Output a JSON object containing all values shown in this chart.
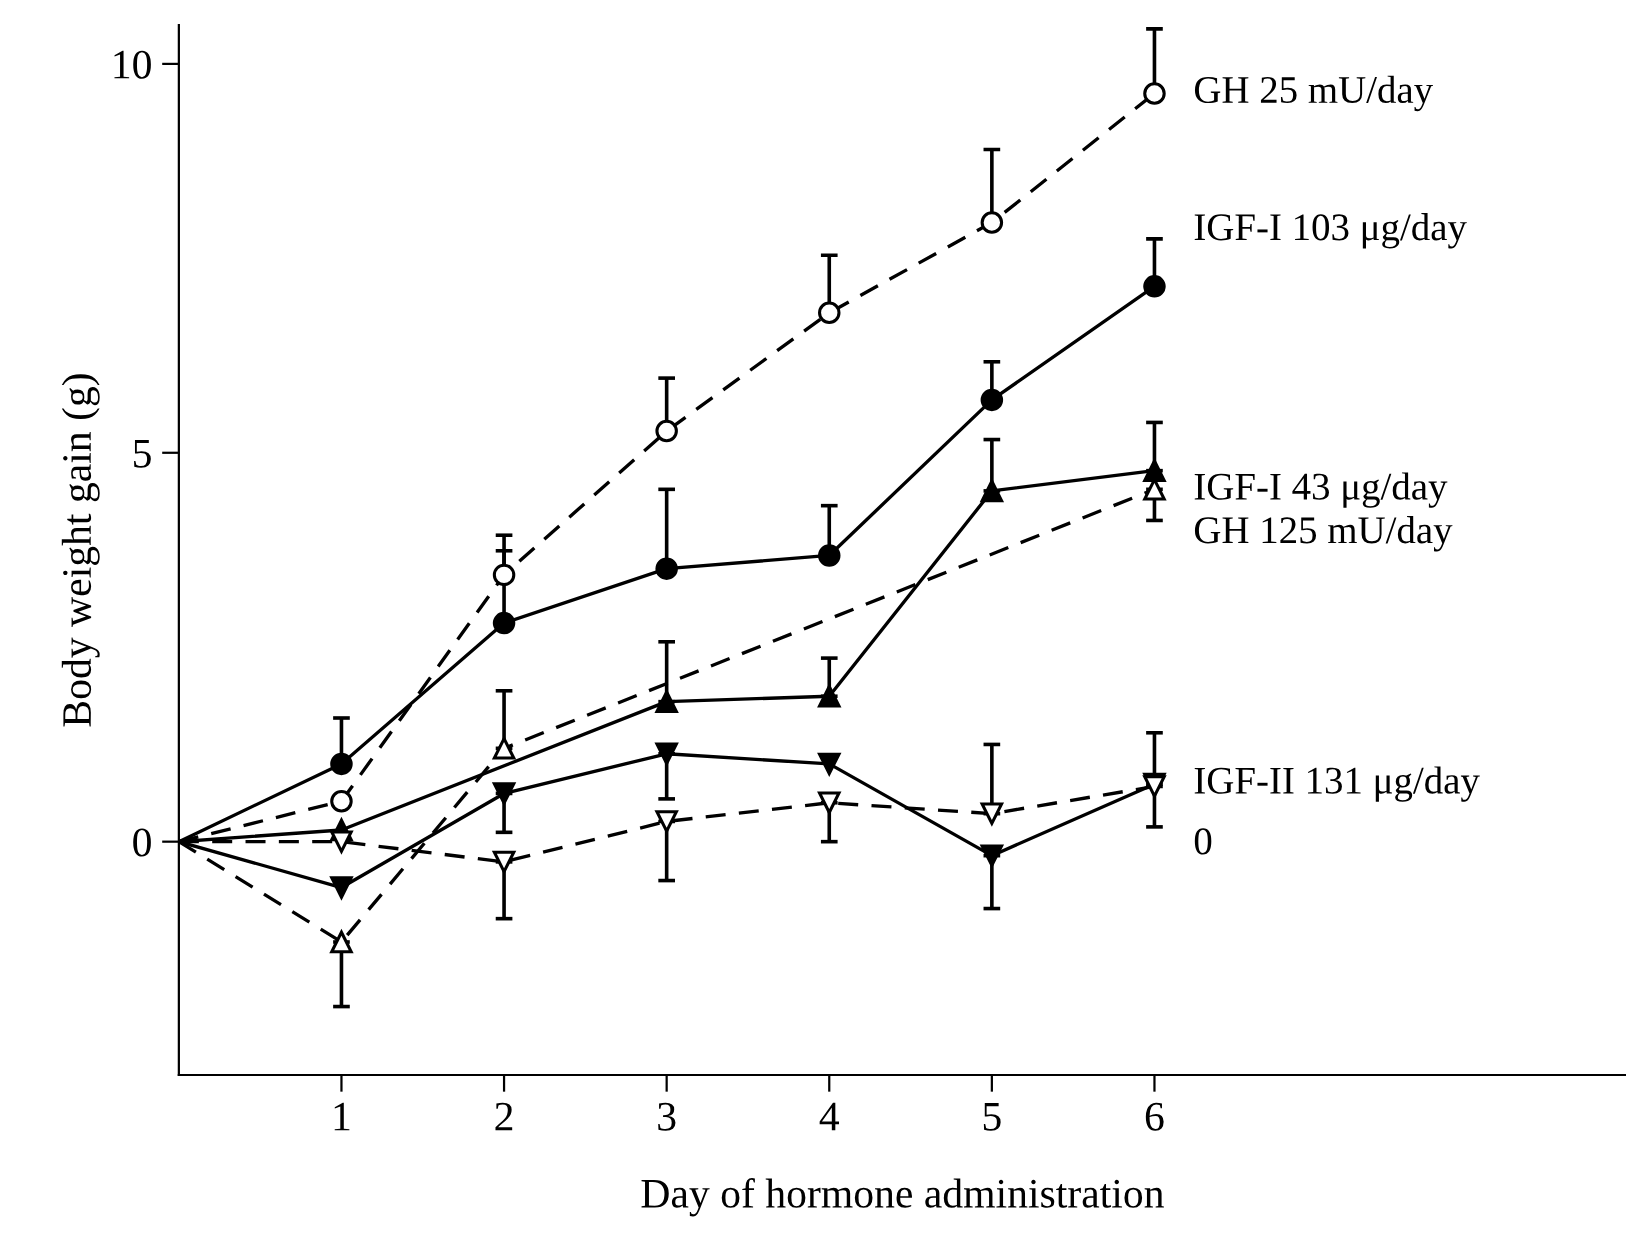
{
  "chart_data": {
    "type": "line",
    "xlabel": "Day of hormone administration",
    "ylabel": "Body weight gain (g)",
    "xlim": [
      0,
      8.9
    ],
    "xticks": [
      1,
      2,
      3,
      4,
      5,
      6
    ],
    "ylim": [
      -3,
      10.5
    ],
    "yticks": [
      0,
      5,
      10
    ],
    "grid": false,
    "legend": false,
    "series": [
      {
        "name": "GH 25 mU/day",
        "color": "#000000",
        "marker": "circle",
        "line_style": "dashed",
        "x": [
          0,
          1,
          2,
          3,
          4,
          5,
          6
        ],
        "values": [
          0,
          0.52,
          3.43,
          5.28,
          6.8,
          7.96,
          9.62
        ],
        "errors": [
          null,
          null,
          [
            3.43,
            3.94
          ],
          [
            5.28,
            5.96
          ],
          [
            6.8,
            7.54
          ],
          [
            7.96,
            8.9
          ],
          [
            9.62,
            10.45
          ]
        ]
      },
      {
        "name": "IGF-I 103 μg/day",
        "color": "#000000",
        "marker": "circle",
        "line_style": "solid",
        "x": [
          0,
          1,
          2,
          3,
          4,
          5,
          6
        ],
        "values": [
          0,
          1.0,
          2.81,
          3.51,
          3.68,
          5.68,
          7.14
        ],
        "errors": [
          null,
          [
            1.0,
            1.59
          ],
          [
            2.81,
            3.74
          ],
          [
            3.51,
            4.53
          ],
          [
            3.68,
            4.32
          ],
          [
            5.68,
            6.17
          ],
          [
            7.14,
            7.75
          ]
        ]
      },
      {
        "name": "IGF-I 43 μg/day",
        "color": "#000000",
        "marker": "triangle",
        "line_style": "solid",
        "x": [
          0,
          1,
          3,
          4,
          5,
          6
        ],
        "values": [
          0,
          0.15,
          1.8,
          1.87,
          4.51,
          4.77
        ],
        "errors": [
          null,
          null,
          [
            1.8,
            2.57
          ],
          [
            1.87,
            2.36
          ],
          [
            4.51,
            5.17
          ],
          [
            4.77,
            5.39
          ]
        ]
      },
      {
        "name": "GH 125 mU/day",
        "color": "#000000",
        "marker": "triangle",
        "line_style": "dashed",
        "x": [
          0,
          1,
          2,
          6
        ],
        "values": [
          0,
          -1.29,
          1.2,
          4.53
        ],
        "errors": [
          null,
          [
            -2.12,
            -1.29
          ],
          [
            1.2,
            1.94
          ],
          [
            4.13,
            4.53
          ]
        ]
      },
      {
        "name": "IGF-II 131 μg/day",
        "color": "#000000",
        "marker": "triangle-down",
        "line_style": "solid",
        "x": [
          0,
          1,
          2,
          3,
          4,
          5,
          6
        ],
        "values": [
          0,
          -0.59,
          0.62,
          1.13,
          1.0,
          -0.18,
          0.74
        ],
        "errors": [
          null,
          null,
          [
            0.12,
            0.62
          ],
          [
            0.55,
            1.13
          ],
          null,
          [
            -0.86,
            -0.18
          ],
          [
            0.19,
            0.74
          ]
        ]
      },
      {
        "name": "0",
        "color": "#000000",
        "marker": "triangle-down",
        "line_style": "dashed",
        "x": [
          0,
          1,
          2,
          3,
          4,
          5,
          6
        ],
        "values": [
          0,
          0.0,
          -0.26,
          0.26,
          0.5,
          0.36,
          0.71
        ],
        "errors": [
          null,
          null,
          [
            -0.99,
            -0.26
          ],
          [
            -0.5,
            0.26
          ],
          [
            0.0,
            0.5
          ],
          [
            0.36,
            1.25
          ],
          [
            0.71,
            1.4
          ]
        ]
      }
    ]
  }
}
